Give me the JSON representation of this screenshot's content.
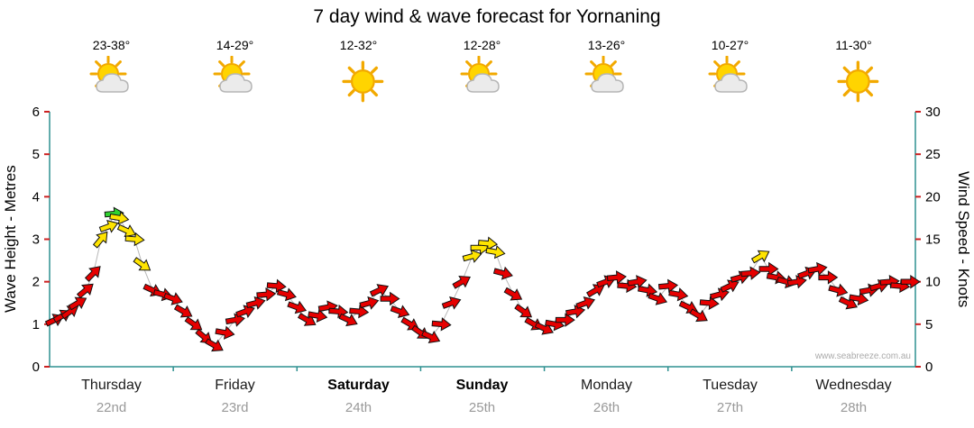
{
  "title": "7 day wind & wave forecast for Yornaning",
  "watermark": "www.seabreeze.com.au",
  "left_axis": {
    "label": "Wave Height - Metres",
    "ticks": [
      0,
      1,
      2,
      3,
      4,
      5,
      6
    ],
    "max": 6
  },
  "right_axis": {
    "label": "Wind Speed - Knots",
    "ticks": [
      0,
      5,
      10,
      15,
      20,
      25,
      30
    ],
    "max": 30
  },
  "days": [
    {
      "name": "Thursday",
      "date": "22nd",
      "temp": "23-38°",
      "icon": "sun-cloud",
      "bold": false
    },
    {
      "name": "Friday",
      "date": "23rd",
      "temp": "14-29°",
      "icon": "sun-cloud",
      "bold": false
    },
    {
      "name": "Saturday",
      "date": "24th",
      "temp": "12-32°",
      "icon": "sun",
      "bold": true
    },
    {
      "name": "Sunday",
      "date": "25th",
      "temp": "12-28°",
      "icon": "sun-cloud",
      "bold": true
    },
    {
      "name": "Monday",
      "date": "26th",
      "temp": "13-26°",
      "icon": "sun-cloud",
      "bold": false
    },
    {
      "name": "Tuesday",
      "date": "27th",
      "temp": "10-27°",
      "icon": "sun-cloud",
      "bold": false
    },
    {
      "name": "Wednesday",
      "date": "28th",
      "temp": "11-30°",
      "icon": "sun",
      "bold": false
    }
  ],
  "chart_data": {
    "type": "scatter",
    "title": "7 day wind & wave forecast for Yornaning",
    "x_unit": "hours",
    "hours_total": 168,
    "ylabel_left": "Wave Height - Metres",
    "ylabel_right": "Wind Speed - Knots",
    "ylim_left": [
      0,
      6
    ],
    "ylim_right": [
      0,
      30
    ],
    "grid": false,
    "frame_color": "#2e9090",
    "tick_color": "#cc2020",
    "trend_color": "#b8b8b8",
    "colors": {
      "r": "#e60000",
      "y": "#ffe400",
      "g": "#2fd32f"
    },
    "arrows": [
      {
        "t": 1,
        "k": 5.5,
        "d": -25,
        "c": "r"
      },
      {
        "t": 2.5,
        "k": 6,
        "d": -30,
        "c": "r"
      },
      {
        "t": 4,
        "k": 6.5,
        "d": -35,
        "c": "r"
      },
      {
        "t": 5.5,
        "k": 7.5,
        "d": -30,
        "c": "r"
      },
      {
        "t": 7,
        "k": 9,
        "d": -40,
        "c": "r"
      },
      {
        "t": 8.5,
        "k": 11,
        "d": -45,
        "c": "r"
      },
      {
        "t": 10,
        "k": 15,
        "d": -50,
        "c": "y"
      },
      {
        "t": 11.5,
        "k": 16.5,
        "d": -20,
        "c": "y"
      },
      {
        "t": 12.5,
        "k": 18,
        "d": -5,
        "c": "g"
      },
      {
        "t": 13.5,
        "k": 17.5,
        "d": 10,
        "c": "y"
      },
      {
        "t": 15,
        "k": 16,
        "d": 25,
        "c": "y"
      },
      {
        "t": 16.5,
        "k": 15,
        "d": 5,
        "c": "y"
      },
      {
        "t": 18,
        "k": 12,
        "d": 35,
        "c": "y"
      },
      {
        "t": 20,
        "k": 9,
        "d": 25,
        "c": "r"
      },
      {
        "t": 22,
        "k": 8.5,
        "d": 15,
        "c": "r"
      },
      {
        "t": 24,
        "k": 8,
        "d": 20,
        "c": "r"
      },
      {
        "t": 26,
        "k": 6.5,
        "d": 30,
        "c": "r"
      },
      {
        "t": 28,
        "k": 5,
        "d": 35,
        "c": "r"
      },
      {
        "t": 30,
        "k": 3.5,
        "d": 40,
        "c": "r"
      },
      {
        "t": 32,
        "k": 2.5,
        "d": 30,
        "c": "r"
      },
      {
        "t": 34,
        "k": 4,
        "d": 10,
        "c": "r"
      },
      {
        "t": 36,
        "k": 5.5,
        "d": -10,
        "c": "r"
      },
      {
        "t": 38,
        "k": 6.5,
        "d": -20,
        "c": "r"
      },
      {
        "t": 40,
        "k": 7.5,
        "d": -15,
        "c": "r"
      },
      {
        "t": 42,
        "k": 8.5,
        "d": -5,
        "c": "r"
      },
      {
        "t": 44,
        "k": 9.5,
        "d": 5,
        "c": "r"
      },
      {
        "t": 46,
        "k": 8.5,
        "d": 15,
        "c": "r"
      },
      {
        "t": 48,
        "k": 7,
        "d": 20,
        "c": "r"
      },
      {
        "t": 50,
        "k": 5.5,
        "d": 30,
        "c": "r"
      },
      {
        "t": 52,
        "k": 6,
        "d": 10,
        "c": "r"
      },
      {
        "t": 54,
        "k": 7,
        "d": -10,
        "c": "r"
      },
      {
        "t": 56,
        "k": 6.5,
        "d": 5,
        "c": "r"
      },
      {
        "t": 58,
        "k": 5.5,
        "d": 25,
        "c": "r"
      },
      {
        "t": 60,
        "k": 6.5,
        "d": 5,
        "c": "r"
      },
      {
        "t": 62,
        "k": 7.5,
        "d": -15,
        "c": "r"
      },
      {
        "t": 64,
        "k": 9,
        "d": -25,
        "c": "r"
      },
      {
        "t": 66,
        "k": 8,
        "d": 0,
        "c": "r"
      },
      {
        "t": 68,
        "k": 6.5,
        "d": 20,
        "c": "r"
      },
      {
        "t": 70,
        "k": 5,
        "d": 30,
        "c": "r"
      },
      {
        "t": 72,
        "k": 4,
        "d": 35,
        "c": "r"
      },
      {
        "t": 74,
        "k": 3.5,
        "d": 25,
        "c": "r"
      },
      {
        "t": 76,
        "k": 5,
        "d": 5,
        "c": "r"
      },
      {
        "t": 78,
        "k": 7.5,
        "d": -20,
        "c": "r"
      },
      {
        "t": 80,
        "k": 10,
        "d": -30,
        "c": "r"
      },
      {
        "t": 82,
        "k": 13,
        "d": -15,
        "c": "y"
      },
      {
        "t": 83.5,
        "k": 14,
        "d": 0,
        "c": "y"
      },
      {
        "t": 85,
        "k": 14.5,
        "d": 5,
        "c": "y"
      },
      {
        "t": 86.5,
        "k": 13.5,
        "d": 10,
        "c": "y"
      },
      {
        "t": 88,
        "k": 11,
        "d": 15,
        "c": "r"
      },
      {
        "t": 90,
        "k": 8.5,
        "d": 30,
        "c": "r"
      },
      {
        "t": 92,
        "k": 6.5,
        "d": 35,
        "c": "r"
      },
      {
        "t": 94,
        "k": 5,
        "d": 30,
        "c": "r"
      },
      {
        "t": 96,
        "k": 4.5,
        "d": 25,
        "c": "r"
      },
      {
        "t": 98,
        "k": 5,
        "d": 10,
        "c": "r"
      },
      {
        "t": 100,
        "k": 5.5,
        "d": 0,
        "c": "r"
      },
      {
        "t": 102,
        "k": 6.5,
        "d": -10,
        "c": "r"
      },
      {
        "t": 104,
        "k": 7.5,
        "d": -20,
        "c": "r"
      },
      {
        "t": 106,
        "k": 9,
        "d": -30,
        "c": "r"
      },
      {
        "t": 108,
        "k": 10,
        "d": -20,
        "c": "r"
      },
      {
        "t": 110,
        "k": 10.5,
        "d": -5,
        "c": "r"
      },
      {
        "t": 112,
        "k": 9.5,
        "d": 5,
        "c": "r"
      },
      {
        "t": 114,
        "k": 10,
        "d": -10,
        "c": "r"
      },
      {
        "t": 116,
        "k": 9,
        "d": 10,
        "c": "r"
      },
      {
        "t": 118,
        "k": 8,
        "d": 20,
        "c": "r"
      },
      {
        "t": 120,
        "k": 9.5,
        "d": -5,
        "c": "r"
      },
      {
        "t": 122,
        "k": 8.5,
        "d": 10,
        "c": "r"
      },
      {
        "t": 124,
        "k": 7,
        "d": 25,
        "c": "r"
      },
      {
        "t": 126,
        "k": 6,
        "d": 30,
        "c": "r"
      },
      {
        "t": 128,
        "k": 7.5,
        "d": 5,
        "c": "r"
      },
      {
        "t": 130,
        "k": 8.5,
        "d": -15,
        "c": "r"
      },
      {
        "t": 132,
        "k": 9.5,
        "d": -25,
        "c": "r"
      },
      {
        "t": 134,
        "k": 10.5,
        "d": -15,
        "c": "r"
      },
      {
        "t": 136,
        "k": 11,
        "d": -5,
        "c": "r"
      },
      {
        "t": 138,
        "k": 13,
        "d": -30,
        "c": "y"
      },
      {
        "t": 139.5,
        "k": 11.5,
        "d": 0,
        "c": "r"
      },
      {
        "t": 141,
        "k": 10.5,
        "d": 10,
        "c": "r"
      },
      {
        "t": 143,
        "k": 10,
        "d": 15,
        "c": "r"
      },
      {
        "t": 145,
        "k": 10,
        "d": -10,
        "c": "r"
      },
      {
        "t": 147,
        "k": 11,
        "d": -20,
        "c": "r"
      },
      {
        "t": 149,
        "k": 11.5,
        "d": -10,
        "c": "r"
      },
      {
        "t": 151,
        "k": 10.5,
        "d": 0,
        "c": "r"
      },
      {
        "t": 153,
        "k": 9,
        "d": 15,
        "c": "r"
      },
      {
        "t": 155,
        "k": 7.5,
        "d": 25,
        "c": "r"
      },
      {
        "t": 157,
        "k": 8,
        "d": 10,
        "c": "r"
      },
      {
        "t": 159,
        "k": 9,
        "d": -10,
        "c": "r"
      },
      {
        "t": 161,
        "k": 9.5,
        "d": -15,
        "c": "r"
      },
      {
        "t": 163,
        "k": 10,
        "d": -5,
        "c": "r"
      },
      {
        "t": 165,
        "k": 9.5,
        "d": 5,
        "c": "r"
      },
      {
        "t": 167,
        "k": 10,
        "d": 0,
        "c": "r"
      }
    ]
  }
}
